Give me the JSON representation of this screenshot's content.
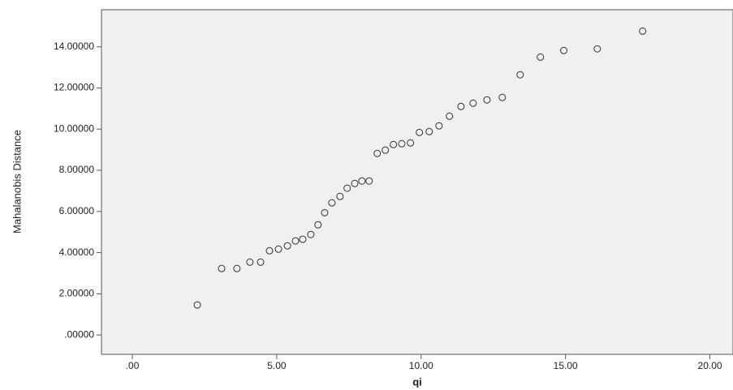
{
  "chart_data": {
    "type": "scatter",
    "x_label": "qi",
    "y_label": "Mahalanobis Distance",
    "x": [
      2.25,
      3.09,
      3.62,
      4.07,
      4.44,
      4.75,
      5.06,
      5.37,
      5.65,
      5.9,
      6.18,
      6.43,
      6.66,
      6.91,
      7.19,
      7.44,
      7.7,
      7.95,
      8.2,
      8.48,
      8.76,
      9.04,
      9.33,
      9.63,
      9.94,
      10.28,
      10.62,
      10.98,
      11.38,
      11.8,
      12.28,
      12.81,
      13.43,
      14.13,
      14.94,
      16.1,
      17.67
    ],
    "values": [
      1.46,
      3.23,
      3.23,
      3.54,
      3.54,
      4.09,
      4.17,
      4.33,
      4.57,
      4.65,
      4.88,
      5.35,
      5.94,
      6.42,
      6.73,
      7.13,
      7.36,
      7.48,
      7.48,
      8.82,
      8.98,
      9.25,
      9.29,
      9.33,
      9.84,
      9.88,
      10.16,
      10.63,
      11.1,
      11.26,
      11.42,
      11.54,
      12.64,
      13.5,
      13.82,
      13.9,
      14.76
    ],
    "color": "#333333",
    "xlim": [
      -1.07,
      20.8
    ],
    "ylim": [
      -0.94,
      15.8
    ],
    "xticks": [
      {
        "value": 0,
        "label": ".00"
      },
      {
        "value": 5,
        "label": "5.00"
      },
      {
        "value": 10,
        "label": "10.00"
      },
      {
        "value": 15,
        "label": "15.00"
      },
      {
        "value": 20,
        "label": "20.00"
      }
    ],
    "yticks": [
      {
        "value": 0,
        "label": ".00000"
      },
      {
        "value": 2,
        "label": "2.00000"
      },
      {
        "value": 4,
        "label": "4.00000"
      },
      {
        "value": 6,
        "label": "6.00000"
      },
      {
        "value": 8,
        "label": "8.00000"
      },
      {
        "value": 10,
        "label": "10.00000"
      },
      {
        "value": 12,
        "label": "12.00000"
      },
      {
        "value": 14,
        "label": "14.00000"
      }
    ],
    "grid": false
  }
}
